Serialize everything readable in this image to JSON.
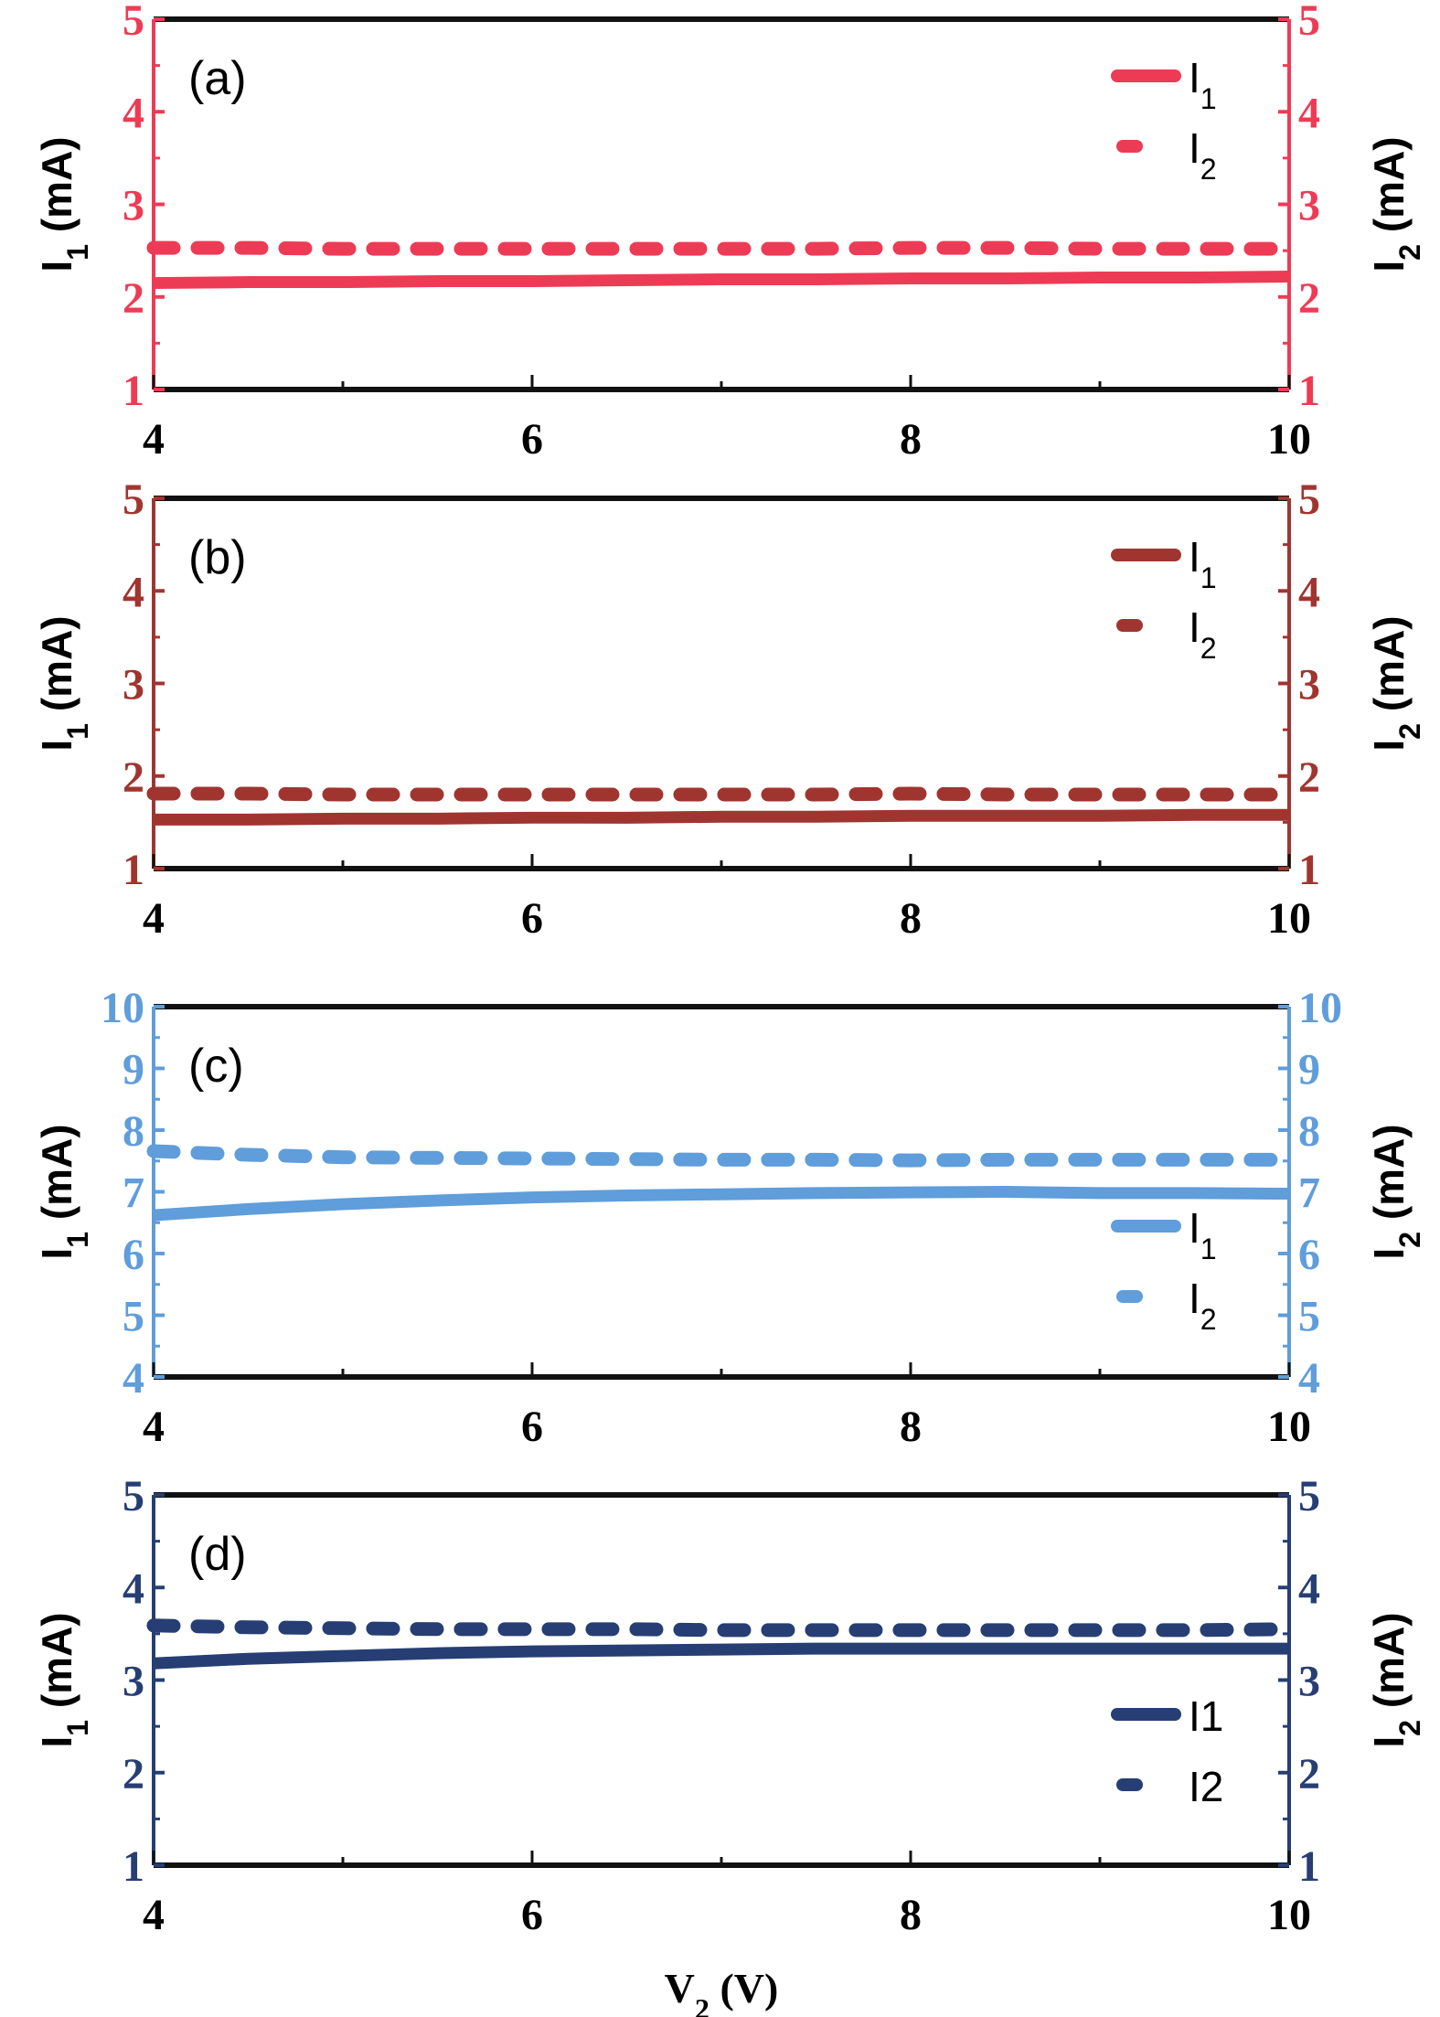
{
  "chart_data": [
    {
      "type": "line",
      "panel_label": "(a)",
      "color": "#ee3b55",
      "xlim": [
        4,
        10
      ],
      "ylim": [
        1,
        5
      ],
      "xticks": [
        "4",
        "6",
        "8",
        "10"
      ],
      "yticks": [
        "1",
        "2",
        "3",
        "4",
        "5"
      ],
      "ylabel_left": "I1 (mA)",
      "ylabel_right": "I2 (mA)",
      "legend_placement": "top-right",
      "legend": [
        "I1",
        "I2"
      ],
      "x": [
        4,
        4.5,
        5,
        5.5,
        6,
        6.5,
        7,
        7.5,
        8,
        8.5,
        9,
        9.5,
        10
      ],
      "series": [
        {
          "name": "I1",
          "style": "solid",
          "values": [
            2.15,
            2.16,
            2.16,
            2.17,
            2.17,
            2.18,
            2.19,
            2.19,
            2.2,
            2.2,
            2.21,
            2.21,
            2.22
          ]
        },
        {
          "name": "I2",
          "style": "dashed",
          "values": [
            2.53,
            2.53,
            2.52,
            2.52,
            2.52,
            2.52,
            2.52,
            2.52,
            2.53,
            2.53,
            2.52,
            2.52,
            2.52
          ]
        }
      ]
    },
    {
      "type": "line",
      "panel_label": "(b)",
      "color": "#a03530",
      "xlim": [
        4,
        10
      ],
      "ylim": [
        1,
        5
      ],
      "xticks": [
        "4",
        "6",
        "8",
        "10"
      ],
      "yticks": [
        "1",
        "2",
        "3",
        "4",
        "5"
      ],
      "ylabel_left": "I1 (mA)",
      "ylabel_right": "I2 (mA)",
      "legend_placement": "top-right",
      "legend": [
        "I1",
        "I2"
      ],
      "x": [
        4,
        4.5,
        5,
        5.5,
        6,
        6.5,
        7,
        7.5,
        8,
        8.5,
        9,
        9.5,
        10
      ],
      "series": [
        {
          "name": "I1",
          "style": "solid",
          "values": [
            1.53,
            1.53,
            1.54,
            1.54,
            1.55,
            1.55,
            1.56,
            1.56,
            1.57,
            1.57,
            1.57,
            1.58,
            1.58
          ]
        },
        {
          "name": "I2",
          "style": "dashed",
          "values": [
            1.81,
            1.81,
            1.8,
            1.8,
            1.8,
            1.8,
            1.8,
            1.8,
            1.81,
            1.8,
            1.8,
            1.8,
            1.8
          ]
        }
      ]
    },
    {
      "type": "line",
      "panel_label": "(c)",
      "color": "#5f9ddb",
      "xlim": [
        4,
        10
      ],
      "ylim": [
        4,
        10
      ],
      "xticks": [
        "4",
        "6",
        "8",
        "10"
      ],
      "yticks": [
        "4",
        "5",
        "6",
        "7",
        "8",
        "9",
        "10"
      ],
      "ylabel_left": "I1 (mA)",
      "ylabel_right": "I2 (mA)",
      "legend_placement": "lower-right",
      "legend": [
        "I1",
        "I2"
      ],
      "x": [
        4,
        4.5,
        5,
        5.5,
        6,
        6.5,
        7,
        7.5,
        8,
        8.5,
        9,
        9.5,
        10
      ],
      "series": [
        {
          "name": "I1",
          "style": "solid",
          "values": [
            6.62,
            6.72,
            6.8,
            6.86,
            6.91,
            6.94,
            6.96,
            6.98,
            6.99,
            7.0,
            6.98,
            6.98,
            6.97
          ]
        },
        {
          "name": "I2",
          "style": "dashed",
          "values": [
            7.66,
            7.6,
            7.56,
            7.55,
            7.54,
            7.53,
            7.52,
            7.52,
            7.51,
            7.52,
            7.52,
            7.52,
            7.52
          ]
        }
      ]
    },
    {
      "type": "line",
      "panel_label": "(d)",
      "color": "#263e73",
      "xlim": [
        4,
        10
      ],
      "ylim": [
        1,
        5
      ],
      "xticks": [
        "4",
        "6",
        "8",
        "10"
      ],
      "yticks": [
        "1",
        "2",
        "3",
        "4",
        "5"
      ],
      "ylabel_left": "I1 (mA)",
      "ylabel_right": "I2 (mA)",
      "legend_placement": "lower-right",
      "legend": [
        "I1",
        "I2"
      ],
      "x": [
        4,
        4.5,
        5,
        5.5,
        6,
        6.5,
        7,
        7.5,
        8,
        8.5,
        9,
        9.5,
        10
      ],
      "series": [
        {
          "name": "I1",
          "style": "solid",
          "values": [
            3.18,
            3.23,
            3.26,
            3.29,
            3.31,
            3.32,
            3.33,
            3.34,
            3.34,
            3.34,
            3.34,
            3.34,
            3.34
          ]
        },
        {
          "name": "I2",
          "style": "dashed",
          "values": [
            3.59,
            3.57,
            3.56,
            3.55,
            3.55,
            3.55,
            3.54,
            3.54,
            3.54,
            3.54,
            3.54,
            3.54,
            3.55
          ]
        }
      ]
    }
  ],
  "xlabel": "V2 (V)"
}
